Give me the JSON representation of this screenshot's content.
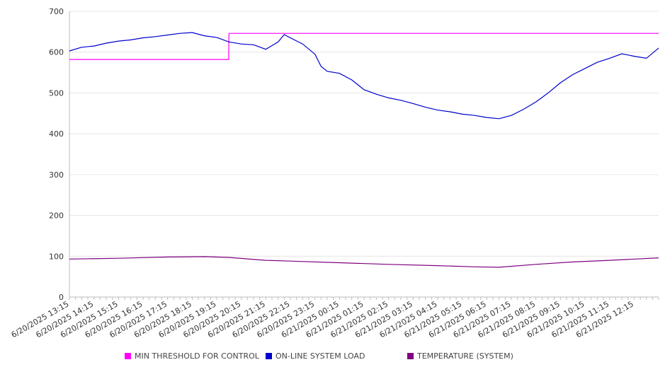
{
  "chart_data": {
    "type": "line",
    "ylim": [
      0,
      700
    ],
    "yticks": [
      0,
      100,
      200,
      300,
      400,
      500,
      600,
      700
    ],
    "grid": "horizontal",
    "legend_placement": "bottom",
    "x": [
      "6/20/2025 13:15",
      "6/20/2025 14:15",
      "6/20/2025 15:15",
      "6/20/2025 16:15",
      "6/20/2025 17:15",
      "6/20/2025 18:15",
      "6/20/2025 19:15",
      "6/20/2025 20:15",
      "6/20/2025 21:15",
      "6/20/2025 22:15",
      "6/20/2025 23:15",
      "6/21/2025 00:15",
      "6/21/2025 01:15",
      "6/21/2025 02:15",
      "6/21/2025 03:15",
      "6/21/2025 04:15",
      "6/21/2025 05:15",
      "6/21/2025 06:15",
      "6/21/2025 07:15",
      "6/21/2025 08:15",
      "6/21/2025 09:15",
      "6/21/2025 10:15",
      "6/21/2025 11:15",
      "6/21/2025 12:15"
    ],
    "series": [
      {
        "name": "MIN THRESHOLD FOR CONTROL",
        "color": "#ff00ff",
        "points": [
          [
            "6/20/2025 13:15",
            582
          ],
          [
            "6/20/2025 19:44",
            582
          ],
          [
            "6/20/2025 19:45",
            646
          ],
          [
            "6/21/2025 13:15",
            646
          ]
        ]
      },
      {
        "name": "ON-LINE SYSTEM LOAD",
        "color": "#0000cc",
        "points": [
          [
            "6/20/2025 13:15",
            603
          ],
          [
            "6/20/2025 13:45",
            612
          ],
          [
            "6/20/2025 14:15",
            615
          ],
          [
            "6/20/2025 14:45",
            622
          ],
          [
            "6/20/2025 15:15",
            627
          ],
          [
            "6/20/2025 15:45",
            630
          ],
          [
            "6/20/2025 16:15",
            635
          ],
          [
            "6/20/2025 16:45",
            638
          ],
          [
            "6/20/2025 17:15",
            642
          ],
          [
            "6/20/2025 17:45",
            646
          ],
          [
            "6/20/2025 18:15",
            648
          ],
          [
            "6/20/2025 18:45",
            640
          ],
          [
            "6/20/2025 19:15",
            636
          ],
          [
            "6/20/2025 19:45",
            625
          ],
          [
            "6/20/2025 20:15",
            620
          ],
          [
            "6/20/2025 20:45",
            618
          ],
          [
            "6/20/2025 21:15",
            607
          ],
          [
            "6/20/2025 21:45",
            625
          ],
          [
            "6/20/2025 22:00",
            643
          ],
          [
            "6/20/2025 22:15",
            635
          ],
          [
            "6/20/2025 22:45",
            620
          ],
          [
            "6/20/2025 23:15",
            595
          ],
          [
            "6/20/2025 23:30",
            565
          ],
          [
            "6/20/2025 23:45",
            553
          ],
          [
            "6/21/2025 00:15",
            548
          ],
          [
            "6/21/2025 00:45",
            532
          ],
          [
            "6/21/2025 01:15",
            508
          ],
          [
            "6/21/2025 01:45",
            497
          ],
          [
            "6/21/2025 02:15",
            488
          ],
          [
            "6/21/2025 02:45",
            482
          ],
          [
            "6/21/2025 03:15",
            474
          ],
          [
            "6/21/2025 03:45",
            465
          ],
          [
            "6/21/2025 04:15",
            458
          ],
          [
            "6/21/2025 04:45",
            454
          ],
          [
            "6/21/2025 05:15",
            448
          ],
          [
            "6/21/2025 05:45",
            445
          ],
          [
            "6/21/2025 06:15",
            440
          ],
          [
            "6/21/2025 06:45",
            437
          ],
          [
            "6/21/2025 07:15",
            445
          ],
          [
            "6/21/2025 07:45",
            460
          ],
          [
            "6/21/2025 08:15",
            478
          ],
          [
            "6/21/2025 08:45",
            500
          ],
          [
            "6/21/2025 09:15",
            525
          ],
          [
            "6/21/2025 09:45",
            545
          ],
          [
            "6/21/2025 10:15",
            560
          ],
          [
            "6/21/2025 10:45",
            575
          ],
          [
            "6/21/2025 11:15",
            585
          ],
          [
            "6/21/2025 11:45",
            596
          ],
          [
            "6/21/2025 12:15",
            590
          ],
          [
            "6/21/2025 12:45",
            585
          ],
          [
            "6/21/2025 13:15",
            610
          ]
        ]
      },
      {
        "name": "TEMPERATURE (SYSTEM)",
        "color": "#800080",
        "points": [
          [
            "6/20/2025 13:15",
            93
          ],
          [
            "6/20/2025 15:15",
            95
          ],
          [
            "6/20/2025 17:15",
            98
          ],
          [
            "6/20/2025 18:45",
            99
          ],
          [
            "6/20/2025 19:45",
            97
          ],
          [
            "6/20/2025 21:15",
            90
          ],
          [
            "6/20/2025 22:15",
            88
          ],
          [
            "6/21/2025 00:15",
            84
          ],
          [
            "6/21/2025 02:15",
            80
          ],
          [
            "6/21/2025 04:15",
            77
          ],
          [
            "6/21/2025 05:45",
            74
          ],
          [
            "6/21/2025 06:45",
            73
          ],
          [
            "6/21/2025 08:15",
            80
          ],
          [
            "6/21/2025 09:45",
            86
          ],
          [
            "6/21/2025 11:15",
            90
          ],
          [
            "6/21/2025 13:15",
            96
          ]
        ]
      }
    ]
  }
}
